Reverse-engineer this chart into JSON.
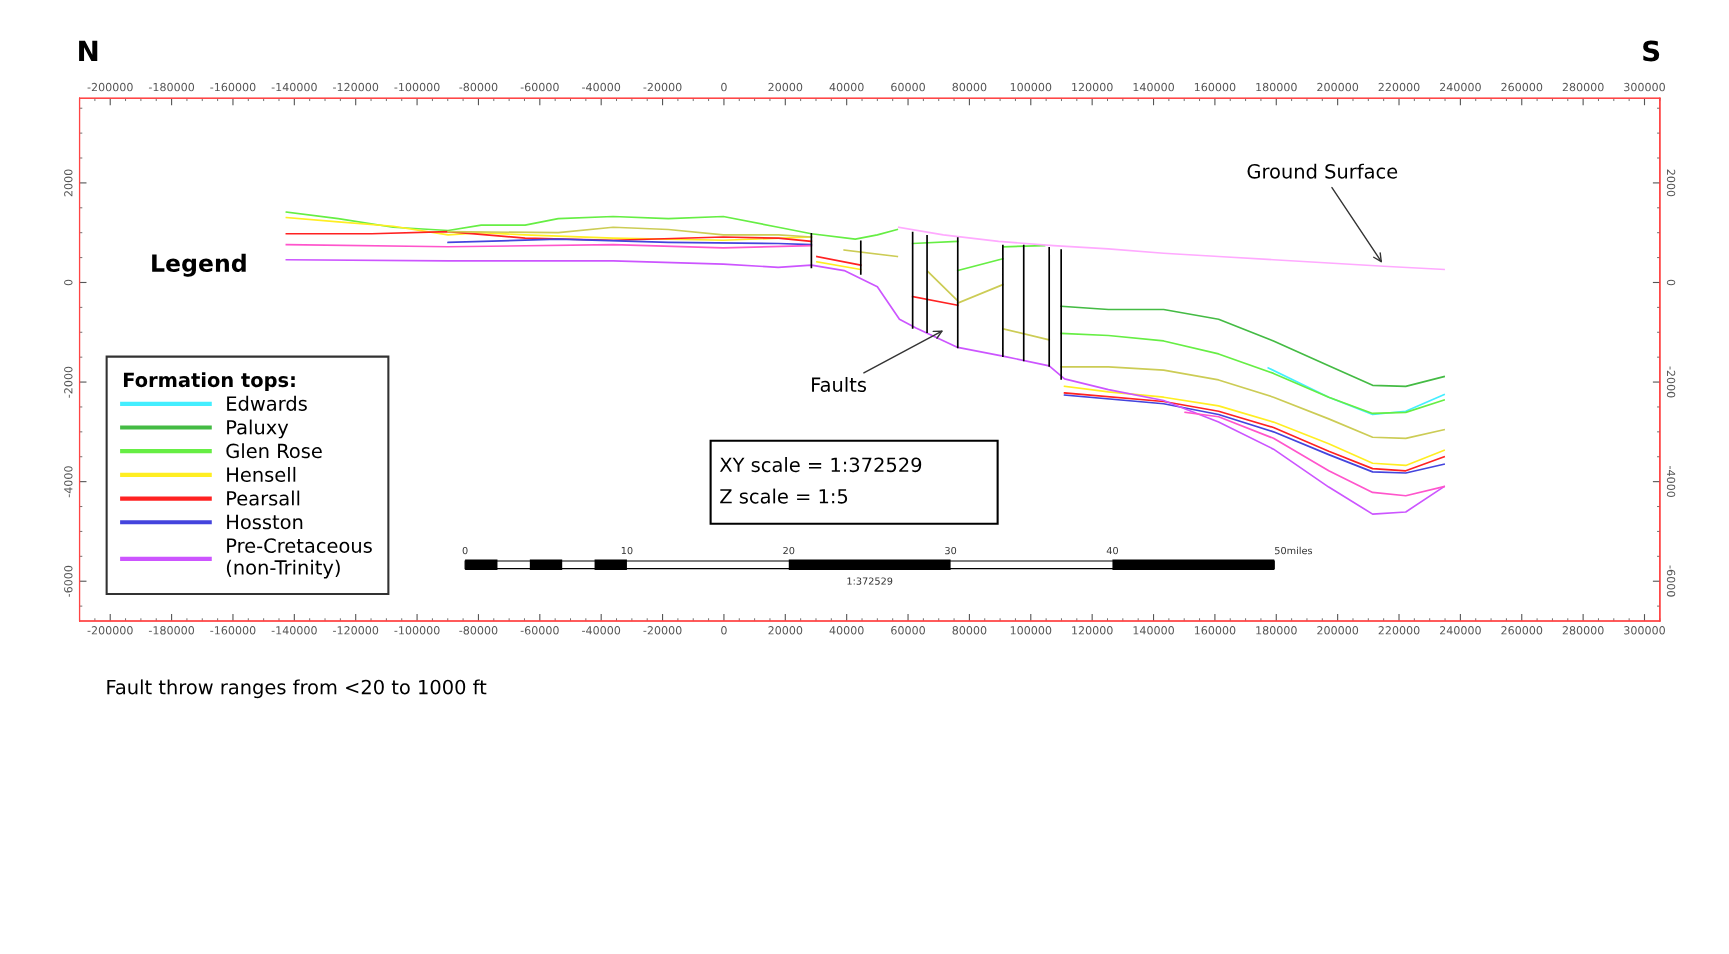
{
  "chart_data": {
    "type": "line",
    "xlim": [
      -210000,
      305000
    ],
    "ylim": [
      -6800,
      3700
    ],
    "xticks": [
      -200000,
      -180000,
      -160000,
      -140000,
      -120000,
      -100000,
      -80000,
      -60000,
      -40000,
      -20000,
      0,
      20000,
      40000,
      60000,
      80000,
      100000,
      120000,
      140000,
      160000,
      180000,
      200000,
      220000,
      240000,
      260000,
      280000,
      300000
    ],
    "yticks": [
      -6000,
      -4000,
      -2000,
      0,
      2000
    ],
    "x2lim": [
      -210000,
      305000
    ],
    "x2ticks": [
      -200000,
      -180000,
      -160000,
      -140000,
      -120000,
      -100000,
      -80000,
      -60000,
      -40000,
      -20000,
      0,
      20000,
      40000,
      60000,
      80000,
      100000,
      120000,
      140000,
      160000,
      180000,
      200000,
      220000,
      240000,
      260000,
      280000,
      300000
    ],
    "y2lim": [
      -6800,
      3700
    ],
    "y2ticks": [
      -6000,
      -4000,
      -2000,
      0,
      2000
    ],
    "legend": "bottom left",
    "legend_title": "Formation tops:",
    "series": [
      {
        "name": "Edwards",
        "color": "#44eeff",
        "x": [
          177400,
          197100,
          211400,
          222200,
          234700
        ],
        "values": [
          -1717,
          -2304,
          -2652,
          -2587,
          -2250
        ]
      },
      {
        "name": "Paluxy",
        "color": "#44bb44",
        "x": [
          109900,
          125300,
          143300,
          161200,
          179100,
          197100,
          211400,
          222200,
          234700
        ],
        "values": [
          -478,
          -543,
          -543,
          -739,
          -1174,
          -1674,
          -2065,
          -2087,
          -1891
        ]
      },
      {
        "name": "Glen Rose",
        "color": "#66ee44",
        "x": [
          -142600,
          -125700,
          -107800,
          -89900,
          -79100,
          -64800,
          -54000,
          -36100,
          -18100,
          -200,
          17700,
          28500,
          42800,
          50000,
          56500,
          null,
          61500,
          76200,
          null,
          76200,
          90900,
          null,
          90900,
          104500,
          null,
          109900,
          125300,
          143300,
          161200,
          179100,
          197100,
          211400,
          222200,
          234700
        ],
        "values": [
          1413,
          1283,
          1109,
          1044,
          1152,
          1152,
          1283,
          1326,
          1283,
          1326,
          1109,
          978,
          870,
          957,
          1065,
          null,
          783,
          826,
          null,
          239,
          478,
          null,
          717,
          739,
          null,
          -1022,
          -1065,
          -1174,
          -1435,
          -1826,
          -2304,
          -2630,
          -2609,
          -2360
        ]
      },
      {
        "name": "Hensell",
        "color": "#ffee22",
        "x": [
          -142600,
          -125700,
          -107800,
          -89900,
          -79100,
          -64800,
          -36100,
          -200,
          28500,
          null,
          30300,
          44600,
          null,
          111000,
          125300,
          143300,
          161200,
          179100,
          197100,
          211400,
          222200,
          234700
        ],
        "values": [
          1304,
          1217,
          1130,
          957,
          1000,
          957,
          891,
          848,
          913,
          null,
          413,
          261,
          null,
          -2087,
          -2196,
          -2304,
          -2478,
          -2804,
          -3239,
          -3630,
          -3674,
          -3370
        ]
      },
      {
        "name": "Pearsall",
        "color": "#ff2222",
        "x": [
          -142600,
          -114800,
          -89900,
          -64800,
          -36100,
          -200,
          17700,
          28500,
          null,
          30300,
          44600,
          null,
          61500,
          76200,
          null,
          111000,
          143300,
          161200,
          179100,
          197100,
          211400,
          222200,
          234700
        ],
        "values": [
          978,
          978,
          1022,
          891,
          848,
          913,
          891,
          826,
          null,
          522,
          348,
          null,
          -283,
          -457,
          null,
          -2217,
          -2391,
          -2587,
          -2913,
          -3391,
          -3739,
          -3783,
          -3500
        ]
      },
      {
        "name": "Hosston",
        "color": "#4444dd",
        "x": [
          -89900,
          -54000,
          -18100,
          17700,
          28500,
          null,
          111000,
          143300,
          161200,
          179100,
          197100,
          211400,
          222200,
          234700
        ],
        "values": [
          804,
          870,
          804,
          783,
          761,
          null,
          -2261,
          -2435,
          -2652,
          -3000,
          -3457,
          -3804,
          -3826,
          -3650
        ]
      },
      {
        "name": "Pre-Cretaceous\n(non-Trinity)",
        "color": "#cc55ff",
        "x": [
          -142600,
          -89900,
          -36100,
          -200,
          17700,
          28500,
          39200,
          50000,
          57200,
          62600,
          76200,
          90900,
          106000,
          111000,
          125300,
          143300,
          161200,
          179100,
          197100,
          211400,
          222200,
          234700
        ],
        "values": [
          457,
          435,
          435,
          370,
          304,
          348,
          239,
          -87,
          -739,
          -913,
          -1304,
          -1478,
          -1674,
          -1935,
          -2152,
          -2370,
          -2804,
          -3348,
          -4109,
          -4652,
          -4609,
          -4100
        ]
      },
      {
        "color": "#cccc55",
        "x": [
          -89900,
          -54000,
          -36100,
          -18100,
          -200,
          17700,
          28500,
          null,
          39200,
          56500,
          null,
          66500,
          76200,
          null,
          76200,
          90900,
          null,
          91300,
          106000,
          null,
          109900,
          125300,
          143300,
          161200,
          179100,
          197100,
          211400,
          222200,
          234700
        ],
        "values": [
          1022,
          1000,
          1109,
          1065,
          957,
          957,
          913,
          null,
          652,
          522,
          null,
          217,
          -370,
          null,
          -413,
          -43,
          null,
          -935,
          -1152,
          null,
          -1696,
          -1696,
          -1761,
          -1957,
          -2304,
          -2739,
          -3109,
          -3130,
          -2957
        ]
      },
      {
        "color": "#ff55cc",
        "x": [
          -142600,
          -89900,
          -36100,
          -200,
          28500,
          null,
          150300,
          161200,
          179100,
          197100,
          211400,
          222200,
          234700
        ],
        "values": [
          761,
          717,
          761,
          696,
          739,
          null,
          -2609,
          -2696,
          -3130,
          -3783,
          -4217,
          -4283,
          -4100
        ]
      },
      {
        "color": "#ffaaff",
        "x": [
          57000,
          71500,
          89500,
          107400,
          125300,
          143300,
          161200,
          179100,
          197100,
          215000,
          234700
        ],
        "values": [
          1109,
          957,
          826,
          739,
          674,
          587,
          522,
          457,
          391,
          326,
          261
        ]
      },
      {
        "color": "#000000",
        "x": [
          28500,
          28500,
          null,
          44600,
          44600,
          null,
          61500,
          61500,
          null,
          66200,
          66200,
          null,
          76200,
          76200,
          null,
          90900,
          90900,
          null,
          97700,
          97700,
          null,
          106000,
          106000,
          null,
          109900,
          109900
        ],
        "values": [
          978,
          304,
          null,
          826,
          174,
          null,
          1000,
          -913,
          null,
          935,
          -1000,
          null,
          891,
          -1304,
          null,
          739,
          -1478,
          null,
          739,
          -1565,
          null,
          696,
          -1674,
          null,
          652,
          -1935
        ]
      }
    ],
    "annotations": [
      {
        "text": "Ground Surface",
        "x": 215000,
        "y": 348
      },
      "N",
      "S",
      "Legend",
      "XY scale = 1:372529",
      "Z scale = 1:5",
      "0",
      "10",
      "20",
      "30",
      "40",
      "50miles",
      "1:372529",
      "Fault throw ranges from <20 to 1000 ft",
      "Faults"
    ]
  }
}
